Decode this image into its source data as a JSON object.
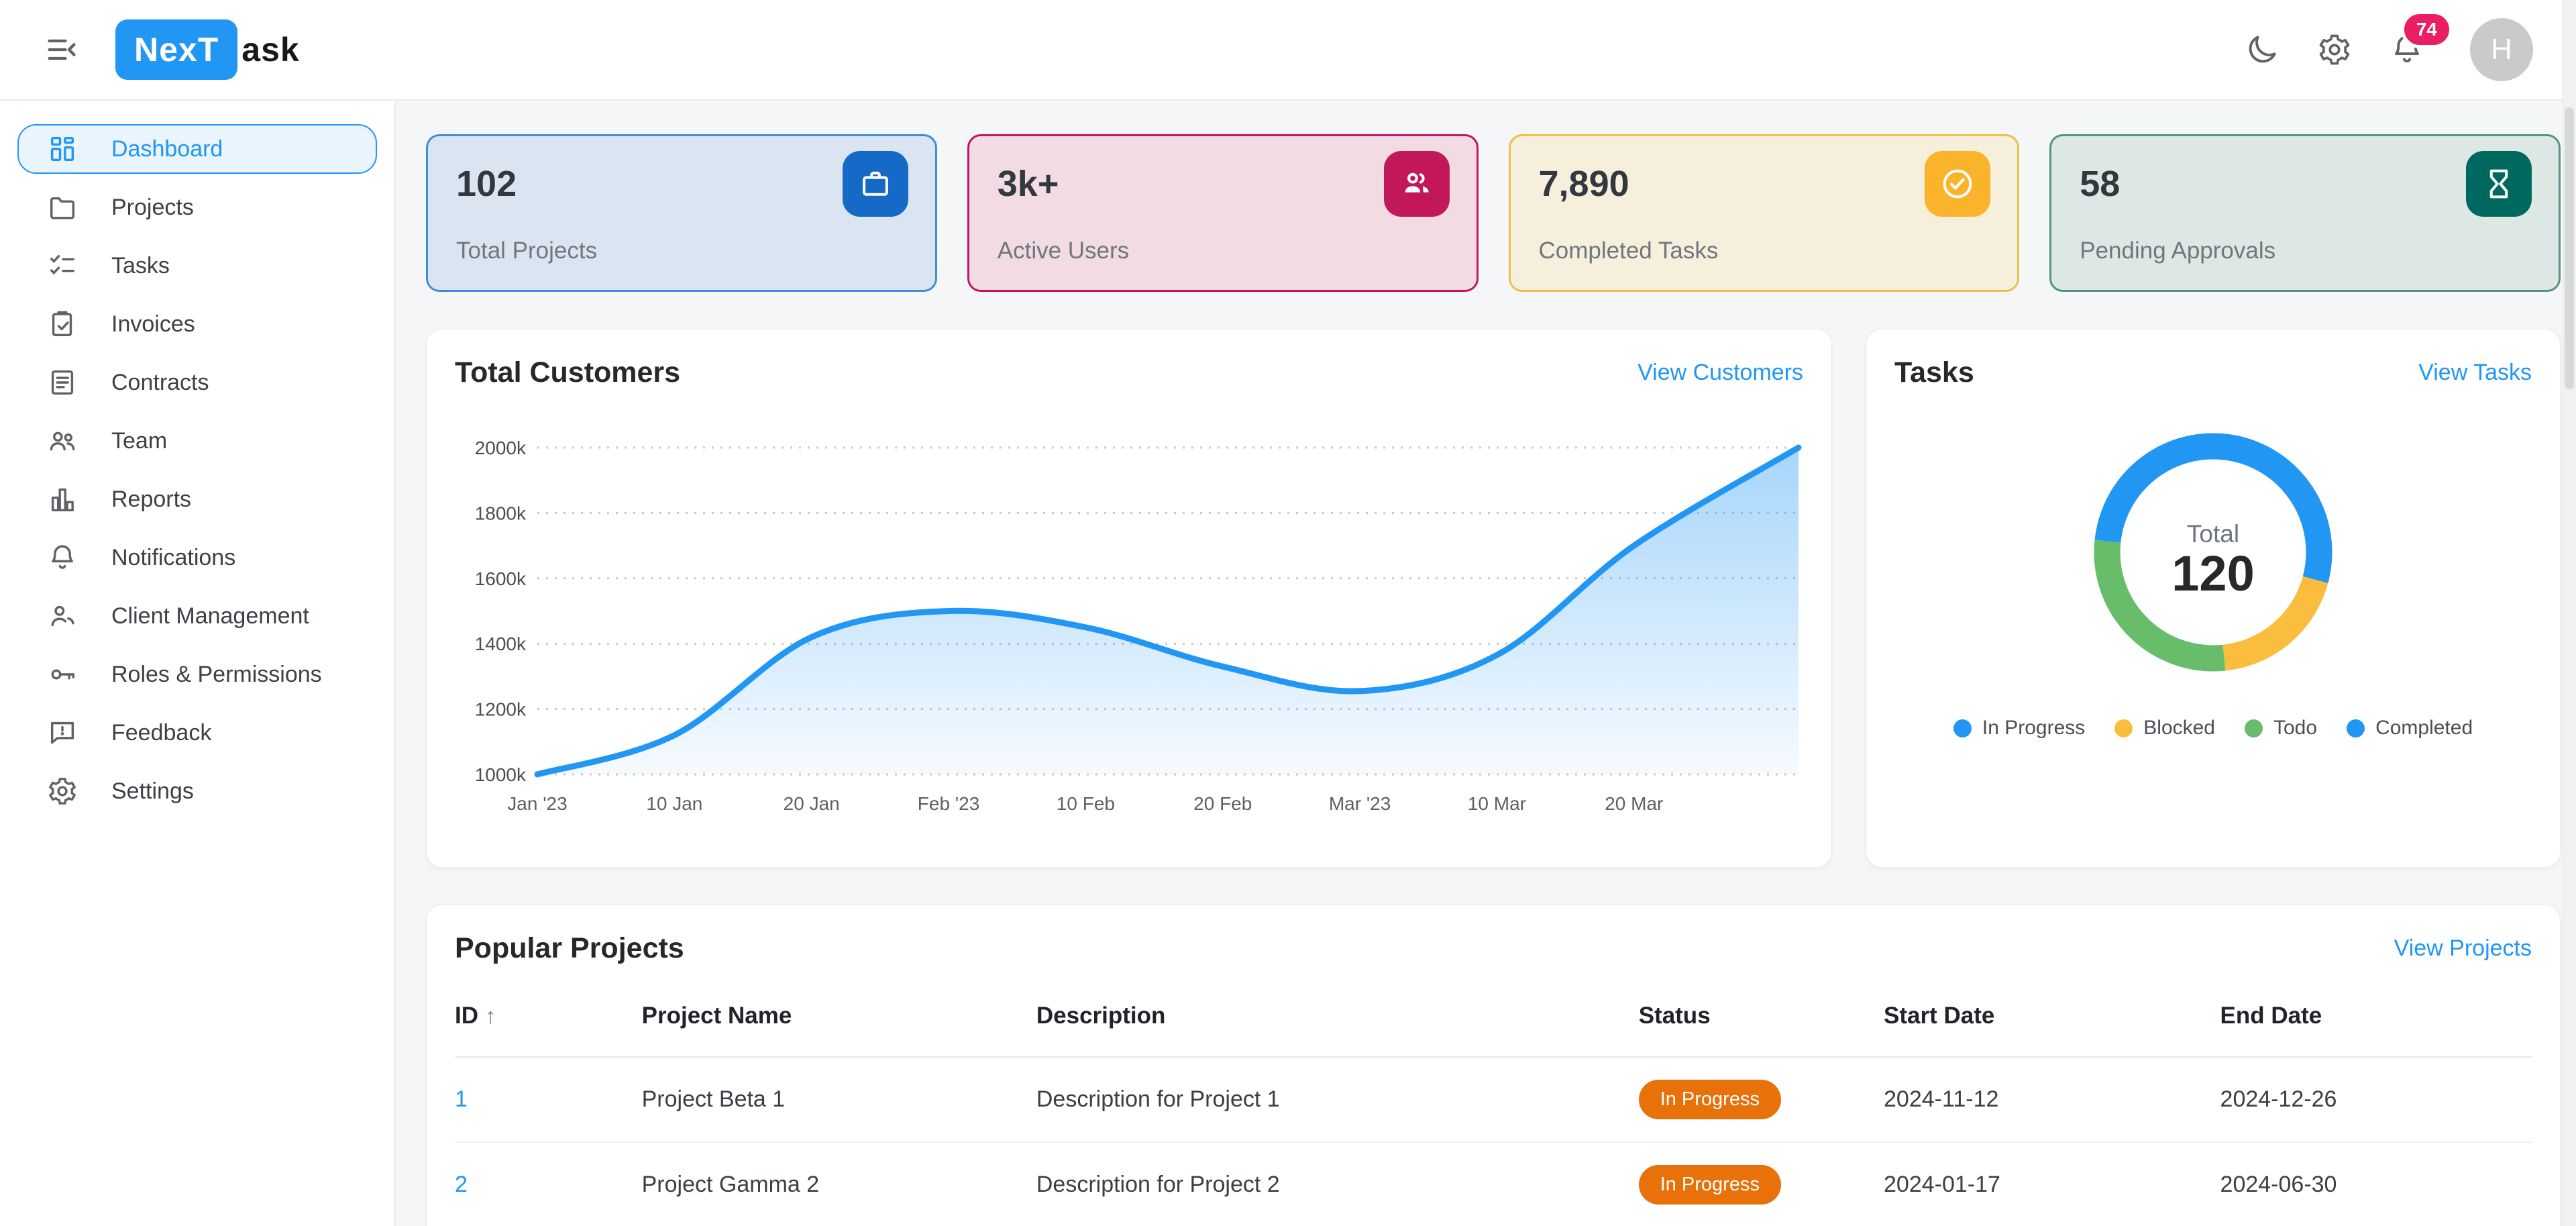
{
  "topbar": {
    "logo_primary": "NexT",
    "logo_secondary": "ask",
    "notification_count": "74",
    "avatar_initial": "H"
  },
  "sidebar": {
    "items": [
      {
        "label": "Dashboard",
        "icon": "dashboard-icon",
        "active": true
      },
      {
        "label": "Projects",
        "icon": "folder-icon",
        "active": false
      },
      {
        "label": "Tasks",
        "icon": "checklist-icon",
        "active": false
      },
      {
        "label": "Invoices",
        "icon": "clipboard-check-icon",
        "active": false
      },
      {
        "label": "Contracts",
        "icon": "document-icon",
        "active": false
      },
      {
        "label": "Team",
        "icon": "people-icon",
        "active": false
      },
      {
        "label": "Reports",
        "icon": "bar-chart-icon",
        "active": false
      },
      {
        "label": "Notifications",
        "icon": "bell-icon",
        "active": false
      },
      {
        "label": "Client Management",
        "icon": "person-icon",
        "active": false
      },
      {
        "label": "Roles & Permissions",
        "icon": "key-icon",
        "active": false
      },
      {
        "label": "Feedback",
        "icon": "feedback-icon",
        "active": false
      },
      {
        "label": "Settings",
        "icon": "gear-icon",
        "active": false
      }
    ]
  },
  "stats": [
    {
      "value": "102",
      "label": "Total Projects",
      "icon": "briefcase-icon",
      "bg": "#dbe5f2",
      "border": "#3d8fd8",
      "icon_bg": "#1569c7"
    },
    {
      "value": "3k+",
      "label": "Active Users",
      "icon": "users-icon",
      "bg": "#f2dbe3",
      "border": "#c2175b",
      "icon_bg": "#c2175b"
    },
    {
      "value": "7,890",
      "label": "Completed Tasks",
      "icon": "check-circle-icon",
      "bg": "#f6efdc",
      "border": "#ecc04a",
      "icon_bg": "#fab42c"
    },
    {
      "value": "58",
      "label": "Pending Approvals",
      "icon": "hourglass-icon",
      "bg": "#dde8e4",
      "border": "#529387",
      "icon_bg": "#00695f"
    }
  ],
  "customers": {
    "title": "Total Customers",
    "link": "View Customers",
    "chart_data": {
      "type": "area",
      "x_ticks": [
        "Jan '23",
        "10 Jan",
        "20 Jan",
        "Feb '23",
        "10 Feb",
        "20 Feb",
        "Mar '23",
        "10 Mar",
        "20 Mar"
      ],
      "values_thousands": [
        1000,
        1120,
        1420,
        1500,
        1450,
        1330,
        1255,
        1365,
        1700,
        2000
      ],
      "note": "10th value is the curve end at the right edge, past the 20 Mar tick; intermediate values estimated from gridlines",
      "y_ticks_top_to_bottom": [
        "2000k",
        "1800k",
        "1600k",
        "1400k",
        "1200k",
        "1000k"
      ],
      "ylim_thousands": [
        1000,
        2000
      ],
      "line_color": "#2196f3",
      "grid": "dashed horizontal"
    }
  },
  "tasks": {
    "title": "Tasks",
    "link": "View Tasks",
    "center_label": "Total",
    "center_value": "120",
    "chart_data": {
      "type": "donut",
      "total": 120,
      "segments": [
        {
          "label": "In Progress",
          "value": 35,
          "color": "#2196f3"
        },
        {
          "label": "Blocked",
          "value": 23,
          "color": "#fbbd3d"
        },
        {
          "label": "Todo",
          "value": 34,
          "color": "#67bd6a"
        },
        {
          "label": "Completed",
          "value": 28,
          "color": "#2196f3"
        }
      ],
      "legend_order": [
        "In Progress",
        "Blocked",
        "Todo",
        "Completed"
      ],
      "note": "segment values estimated from arc angles; only the total (120) is displayed"
    }
  },
  "projects": {
    "title": "Popular Projects",
    "link": "View Projects",
    "columns": [
      "ID",
      "Project Name",
      "Description",
      "Status",
      "Start Date",
      "End Date"
    ],
    "sorted_by": "ID ascending",
    "sort_arrow": "↑",
    "status_color": "#e8710a",
    "rows": [
      {
        "id": "1",
        "name": "Project Beta 1",
        "description": "Description for Project 1",
        "status": "In Progress",
        "start_date": "2024-11-12",
        "end_date": "2024-12-26"
      },
      {
        "id": "2",
        "name": "Project Gamma 2",
        "description": "Description for Project 2",
        "status": "In Progress",
        "start_date": "2024-01-17",
        "end_date": "2024-06-30"
      }
    ]
  },
  "colors": {
    "accent_blue": "#2196f3",
    "page_bg": "#f5f6f8",
    "badge_pink": "#e91e63",
    "status_orange": "#e8710a"
  }
}
